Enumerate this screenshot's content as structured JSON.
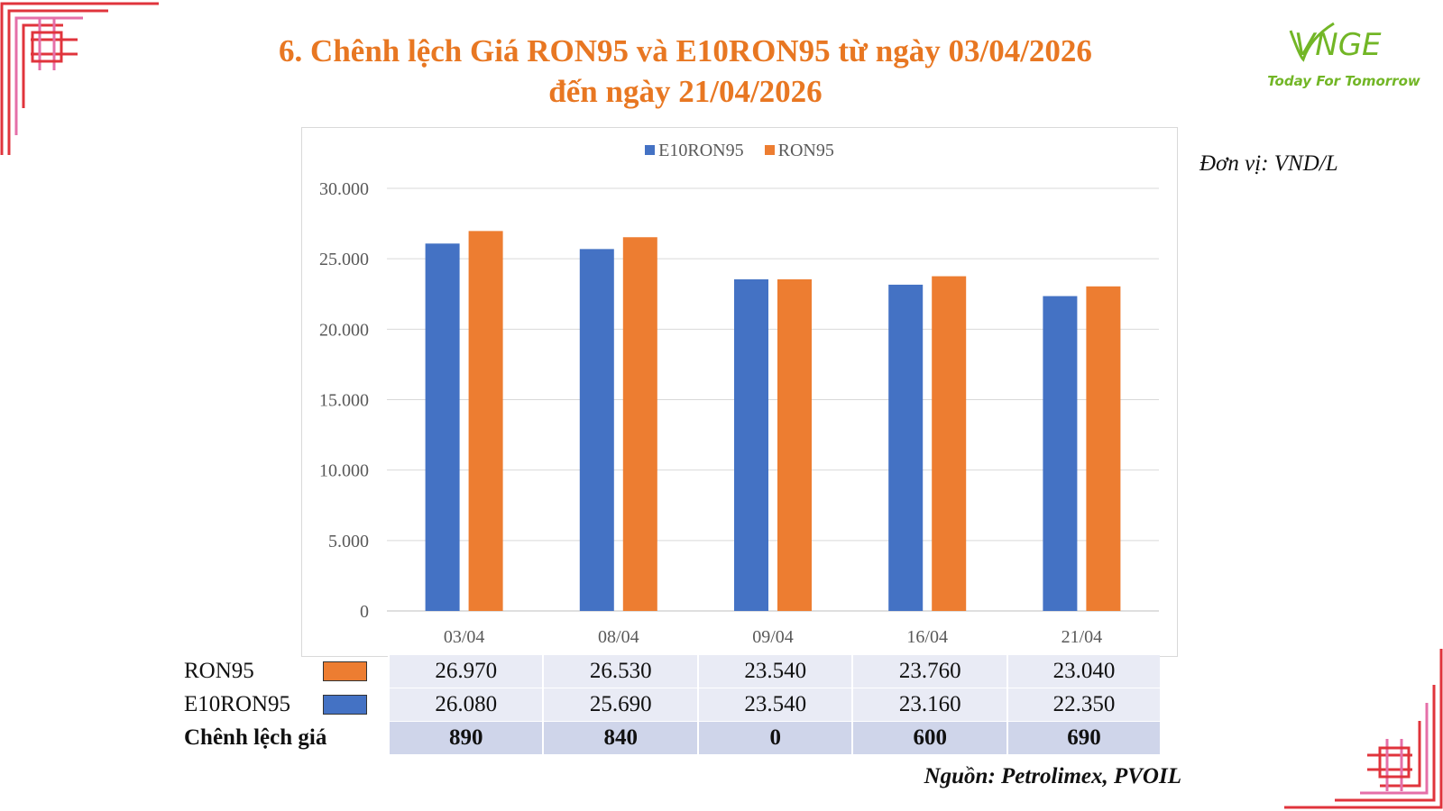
{
  "slide": {
    "title_line1": "6. Chênh lệch Giá RON95 và E10RON95 từ ngày 03/04/2026",
    "title_line2": "đến ngày 21/04/2026",
    "unit": "Đơn vị: VND/L",
    "source": "Nguồn: Petrolimex, PVOIL",
    "logo_mark": "VNGE",
    "logo_tagline": "Today For Tomorrow"
  },
  "colors": {
    "title": "#E87722",
    "e10": "#4472C4",
    "ron95": "#ED7D31",
    "logo": "#72B626",
    "corner_red": "#E0343C",
    "corner_pink": "#E56FA8"
  },
  "chart_data": {
    "type": "bar",
    "title": "",
    "xlabel": "",
    "ylabel": "",
    "categories": [
      "03/04",
      "08/04",
      "09/04",
      "16/04",
      "21/04"
    ],
    "series": [
      {
        "name": "E10RON95",
        "values": [
          26080,
          25690,
          23540,
          23160,
          22350
        ]
      },
      {
        "name": "RON95",
        "values": [
          26970,
          26530,
          23540,
          23760,
          23040
        ]
      }
    ],
    "ylim": [
      0,
      30000
    ],
    "yticks": [
      0,
      5000,
      10000,
      15000,
      20000,
      25000,
      30000
    ],
    "ytick_labels": [
      "0",
      "5.000",
      "10.000",
      "15.000",
      "20.000",
      "25.000",
      "30.000"
    ],
    "grid": true,
    "legend_position": "top-center"
  },
  "table": {
    "rows": [
      {
        "label": "RON95",
        "swatch": "ron95",
        "values": [
          "26.970",
          "26.530",
          "23.540",
          "23.760",
          "23.040"
        ]
      },
      {
        "label": "E10RON95",
        "swatch": "e10",
        "values": [
          "26.080",
          "25.690",
          "23.540",
          "23.160",
          "22.350"
        ]
      },
      {
        "label": "Chênh lệch giá",
        "values": [
          "890",
          "840",
          "0",
          "600",
          "690"
        ]
      }
    ]
  }
}
